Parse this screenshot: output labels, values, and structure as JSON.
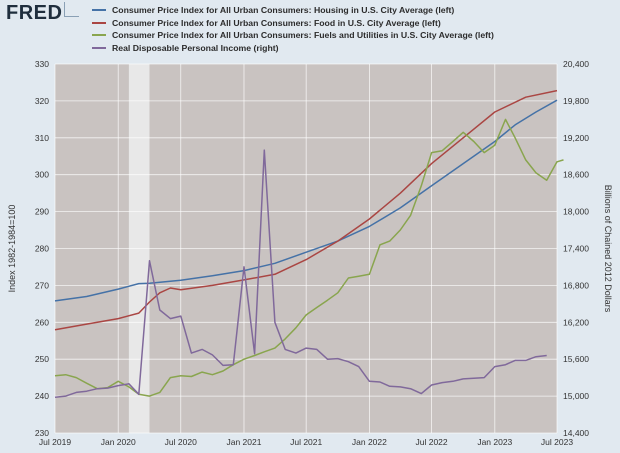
{
  "header": {
    "logo_text": "FRED"
  },
  "chart_data": {
    "type": "line",
    "title": "",
    "xlabel": "",
    "x_ticks": [
      {
        "date": "2019-07-01",
        "label": "Jul 2019"
      },
      {
        "date": "2020-01-01",
        "label": "Jan 2020"
      },
      {
        "date": "2020-07-01",
        "label": "Jul 2020"
      },
      {
        "date": "2021-01-01",
        "label": "Jan 2021"
      },
      {
        "date": "2021-07-01",
        "label": "Jul 2021"
      },
      {
        "date": "2022-01-01",
        "label": "Jan 2022"
      },
      {
        "date": "2022-07-01",
        "label": "Jul 2022"
      },
      {
        "date": "2023-01-01",
        "label": "Jan 2023"
      },
      {
        "date": "2023-07-01",
        "label": "Jul 2023"
      }
    ],
    "x_range": [
      "2019-07-01",
      "2023-07-01"
    ],
    "left_axis": {
      "label": "Index 1982-1984=100",
      "range": [
        230,
        330
      ],
      "ticks": [
        230,
        240,
        250,
        260,
        270,
        280,
        290,
        300,
        310,
        320,
        330
      ]
    },
    "right_axis": {
      "label": "Billions of Chained 2012 Dollars",
      "range": [
        14400,
        20400
      ],
      "ticks": [
        14400,
        15000,
        15600,
        16200,
        16800,
        17400,
        18000,
        18600,
        19200,
        19800,
        20400
      ],
      "tick_labels": [
        "14,400",
        "15,000",
        "15,600",
        "16,200",
        "16,800",
        "17,400",
        "18,000",
        "18,600",
        "19,200",
        "19,800",
        "20,400"
      ]
    },
    "recession": {
      "start": "2020-02-01",
      "end": "2020-04-01",
      "color": "#e8e8e8"
    },
    "grid": true,
    "legend_position": "top-left",
    "plot_background": "#c9c3c1",
    "series": [
      {
        "name": "Consumer Price Index for All Urban Consumers: Housing in U.S. City Average (left)",
        "color": "#4572a7",
        "axis": "left",
        "points": [
          [
            "2019-07-01",
            265.8
          ],
          [
            "2019-10-01",
            267.0
          ],
          [
            "2020-01-01",
            269.0
          ],
          [
            "2020-03-01",
            270.5
          ],
          [
            "2020-04-01",
            270.6
          ],
          [
            "2020-07-01",
            271.4
          ],
          [
            "2020-10-01",
            272.6
          ],
          [
            "2021-01-01",
            274.0
          ],
          [
            "2021-04-01",
            276.0
          ],
          [
            "2021-07-01",
            279.0
          ],
          [
            "2021-10-01",
            282.0
          ],
          [
            "2022-01-01",
            286.0
          ],
          [
            "2022-04-01",
            291.0
          ],
          [
            "2022-07-01",
            297.0
          ],
          [
            "2022-10-01",
            303.0
          ],
          [
            "2023-01-01",
            309.0
          ],
          [
            "2023-03-01",
            313.5
          ],
          [
            "2023-05-01",
            317.0
          ],
          [
            "2023-07-01",
            320.2
          ]
        ]
      },
      {
        "name": "Consumer Price Index for All Urban Consumers: Food in U.S. City Average (left)",
        "color": "#aa4643",
        "axis": "left",
        "points": [
          [
            "2019-07-01",
            258.0
          ],
          [
            "2019-10-01",
            259.5
          ],
          [
            "2020-01-01",
            261.0
          ],
          [
            "2020-03-01",
            262.5
          ],
          [
            "2020-04-01",
            265.5
          ],
          [
            "2020-05-01",
            268.0
          ],
          [
            "2020-06-01",
            269.3
          ],
          [
            "2020-07-01",
            268.8
          ],
          [
            "2020-10-01",
            270.0
          ],
          [
            "2021-01-01",
            271.5
          ],
          [
            "2021-04-01",
            273.0
          ],
          [
            "2021-07-01",
            277.0
          ],
          [
            "2021-10-01",
            282.0
          ],
          [
            "2022-01-01",
            288.0
          ],
          [
            "2022-04-01",
            295.0
          ],
          [
            "2022-07-01",
            303.0
          ],
          [
            "2022-10-01",
            310.0
          ],
          [
            "2023-01-01",
            317.0
          ],
          [
            "2023-04-01",
            321.0
          ],
          [
            "2023-07-01",
            322.8
          ]
        ]
      },
      {
        "name": "Consumer Price Index for All Urban Consumers: Fuels and Utilities in U.S. City Average (left)",
        "color": "#89a54e",
        "axis": "left",
        "points": [
          [
            "2019-07-01",
            245.5
          ],
          [
            "2019-08-01",
            245.8
          ],
          [
            "2019-09-01",
            245.0
          ],
          [
            "2019-10-01",
            243.5
          ],
          [
            "2019-11-01",
            242.0
          ],
          [
            "2019-12-01",
            242.3
          ],
          [
            "2020-01-01",
            244.0
          ],
          [
            "2020-02-01",
            242.5
          ],
          [
            "2020-03-01",
            240.5
          ],
          [
            "2020-04-01",
            240.0
          ],
          [
            "2020-05-01",
            241.0
          ],
          [
            "2020-06-01",
            245.0
          ],
          [
            "2020-07-01",
            245.5
          ],
          [
            "2020-08-01",
            245.3
          ],
          [
            "2020-09-01",
            246.5
          ],
          [
            "2020-10-01",
            245.8
          ],
          [
            "2020-11-01",
            246.8
          ],
          [
            "2020-12-01",
            248.5
          ],
          [
            "2021-01-01",
            250.0
          ],
          [
            "2021-02-01",
            251.0
          ],
          [
            "2021-03-01",
            252.0
          ],
          [
            "2021-04-01",
            253.0
          ],
          [
            "2021-05-01",
            255.5
          ],
          [
            "2021-06-01",
            258.5
          ],
          [
            "2021-07-01",
            262.0
          ],
          [
            "2021-08-01",
            264.0
          ],
          [
            "2021-09-01",
            266.0
          ],
          [
            "2021-10-01",
            268.0
          ],
          [
            "2021-11-01",
            272.0
          ],
          [
            "2021-12-01",
            272.5
          ],
          [
            "2022-01-01",
            273.0
          ],
          [
            "2022-02-01",
            281.0
          ],
          [
            "2022-03-01",
            282.0
          ],
          [
            "2022-04-01",
            285.0
          ],
          [
            "2022-05-01",
            289.0
          ],
          [
            "2022-06-01",
            297.0
          ],
          [
            "2022-07-01",
            306.0
          ],
          [
            "2022-08-01",
            306.5
          ],
          [
            "2022-09-01",
            309.0
          ],
          [
            "2022-10-01",
            311.5
          ],
          [
            "2022-11-01",
            309.0
          ],
          [
            "2022-12-01",
            306.0
          ],
          [
            "2023-01-01",
            308.0
          ],
          [
            "2023-02-01",
            315.0
          ],
          [
            "2023-03-01",
            310.0
          ],
          [
            "2023-04-01",
            304.0
          ],
          [
            "2023-05-01",
            300.5
          ],
          [
            "2023-06-01",
            298.5
          ],
          [
            "2023-07-01",
            303.5
          ],
          [
            "2023-07-20",
            304.0
          ]
        ]
      },
      {
        "name": "Real Disposable Personal Income (right)",
        "color": "#80699b",
        "axis": "right",
        "points": [
          [
            "2019-07-01",
            14980
          ],
          [
            "2019-08-01",
            15000
          ],
          [
            "2019-09-01",
            15060
          ],
          [
            "2019-10-01",
            15080
          ],
          [
            "2019-11-01",
            15120
          ],
          [
            "2019-12-01",
            15130
          ],
          [
            "2020-01-01",
            15170
          ],
          [
            "2020-02-01",
            15200
          ],
          [
            "2020-03-01",
            15030
          ],
          [
            "2020-04-01",
            17200
          ],
          [
            "2020-05-01",
            16400
          ],
          [
            "2020-06-01",
            16260
          ],
          [
            "2020-07-01",
            16300
          ],
          [
            "2020-08-01",
            15700
          ],
          [
            "2020-09-01",
            15760
          ],
          [
            "2020-10-01",
            15670
          ],
          [
            "2020-11-01",
            15500
          ],
          [
            "2020-12-01",
            15510
          ],
          [
            "2021-01-01",
            17100
          ],
          [
            "2021-02-01",
            15690
          ],
          [
            "2021-03-01",
            19000
          ],
          [
            "2021-04-01",
            16200
          ],
          [
            "2021-05-01",
            15760
          ],
          [
            "2021-06-01",
            15700
          ],
          [
            "2021-07-01",
            15780
          ],
          [
            "2021-08-01",
            15760
          ],
          [
            "2021-09-01",
            15600
          ],
          [
            "2021-10-01",
            15610
          ],
          [
            "2021-11-01",
            15560
          ],
          [
            "2021-12-01",
            15480
          ],
          [
            "2022-01-01",
            15240
          ],
          [
            "2022-02-01",
            15230
          ],
          [
            "2022-03-01",
            15160
          ],
          [
            "2022-04-01",
            15150
          ],
          [
            "2022-05-01",
            15120
          ],
          [
            "2022-06-01",
            15040
          ],
          [
            "2022-07-01",
            15180
          ],
          [
            "2022-08-01",
            15220
          ],
          [
            "2022-09-01",
            15240
          ],
          [
            "2022-10-01",
            15280
          ],
          [
            "2022-11-01",
            15290
          ],
          [
            "2022-12-01",
            15300
          ],
          [
            "2023-01-01",
            15480
          ],
          [
            "2023-02-01",
            15510
          ],
          [
            "2023-03-01",
            15580
          ],
          [
            "2023-04-01",
            15580
          ],
          [
            "2023-05-01",
            15640
          ],
          [
            "2023-06-01",
            15660
          ]
        ]
      }
    ]
  }
}
